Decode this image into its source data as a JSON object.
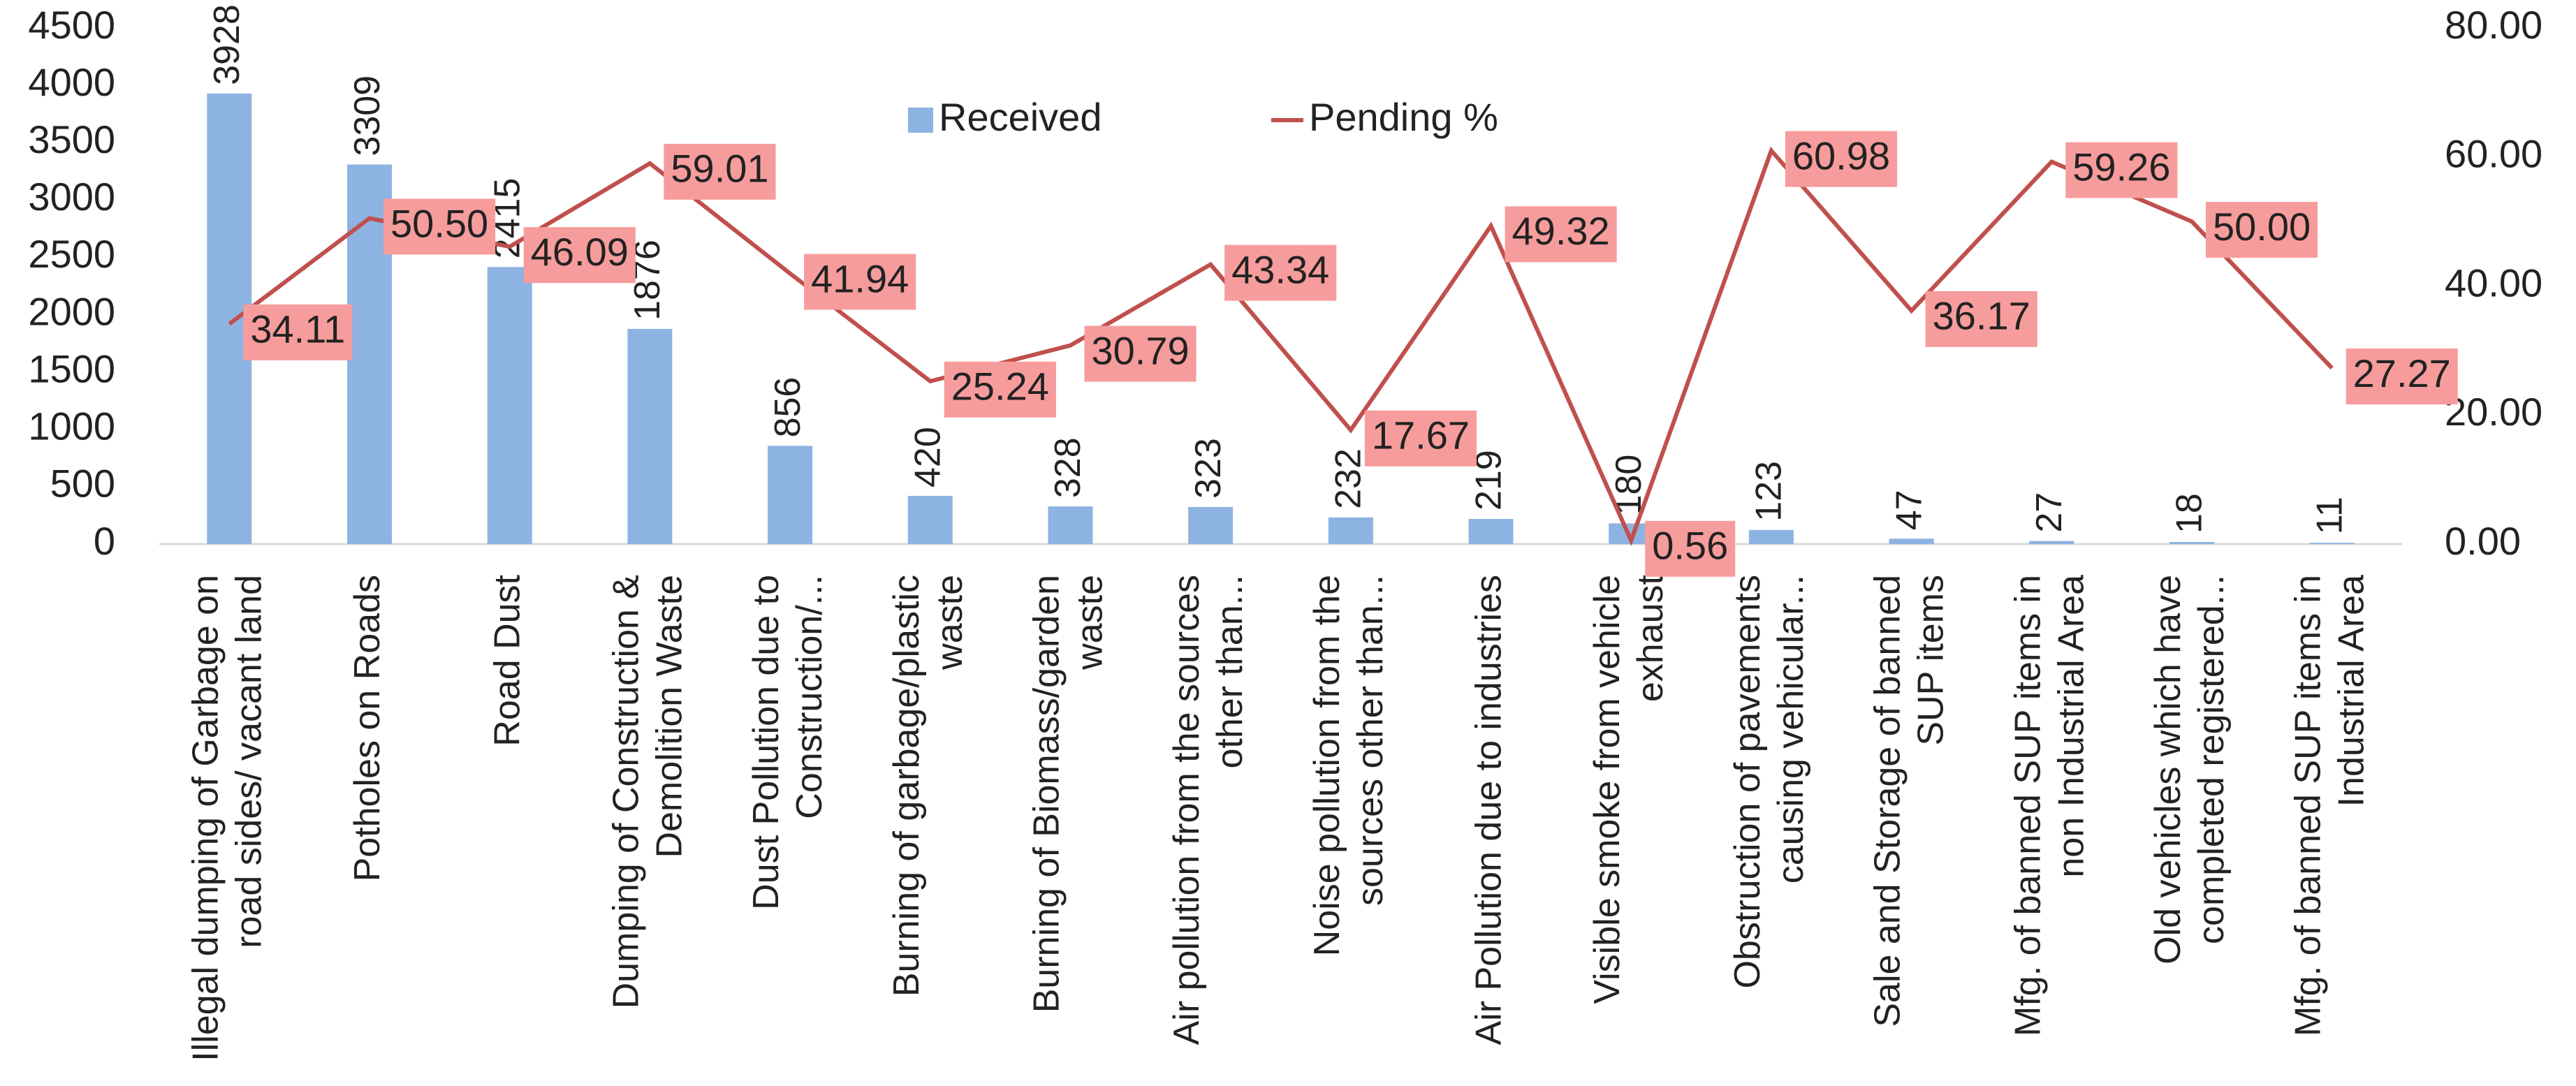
{
  "chart_data": {
    "type": "bar_line",
    "categories": [
      "Illegal dumping of Garbage on road sides/ vacant land",
      "Potholes on Roads",
      "Road Dust",
      "Dumping of Construction & Demolition Waste",
      "Dust Pollution due to Construction/...",
      "Burning of garbage/plastic waste",
      "Burning of Biomass/garden waste",
      "Air pollution from the sources other than...",
      "Noise pollution from the sources other than...",
      "Air Pollution due to industries",
      "Visible smoke from vehicle exhaust",
      "Obstruction of pavements causing vehicular...",
      "Sale and Storage of banned SUP items",
      "Mfg. of banned SUP items in non Industrial Area",
      "Old vehicles which have completed registered...",
      "Mfg. of banned SUP items in Industrial Area"
    ],
    "series": [
      {
        "name": "Received",
        "type": "bar",
        "color": "#8db3e2",
        "values": [
          3928,
          3309,
          2415,
          1876,
          856,
          420,
          328,
          323,
          232,
          219,
          180,
          123,
          47,
          27,
          18,
          11
        ]
      },
      {
        "name": "Pending %",
        "type": "line",
        "axis": "y2",
        "color": "#c0504d",
        "label_color": "#f79c9c",
        "values": [
          34.11,
          50.5,
          46.09,
          59.01,
          41.94,
          25.24,
          30.79,
          43.34,
          17.67,
          49.32,
          0.56,
          60.98,
          36.17,
          59.26,
          50,
          27.27
        ],
        "value_labels": [
          "34.11",
          "50.50",
          "46.09",
          "59.01",
          "41.94",
          "25.24",
          "30.79",
          "43.34",
          "17.67",
          "49.32",
          "0.56",
          "60.98",
          "36.17",
          "59.26",
          "50.00",
          "27.27"
        ]
      }
    ],
    "ylim": [
      0,
      4500
    ],
    "yticks": [
      0,
      500,
      1000,
      1500,
      2000,
      2500,
      3000,
      3500,
      4000,
      4500
    ],
    "y2lim": [
      0,
      80
    ],
    "y2ticks": [
      {
        "value": 0,
        "label": "0.00"
      },
      {
        "value": 20,
        "label": "20.00"
      },
      {
        "value": 40,
        "label": "40.00"
      },
      {
        "value": 60,
        "label": "60.00"
      },
      {
        "value": 80,
        "label": "80.00"
      }
    ],
    "legend": "top"
  }
}
